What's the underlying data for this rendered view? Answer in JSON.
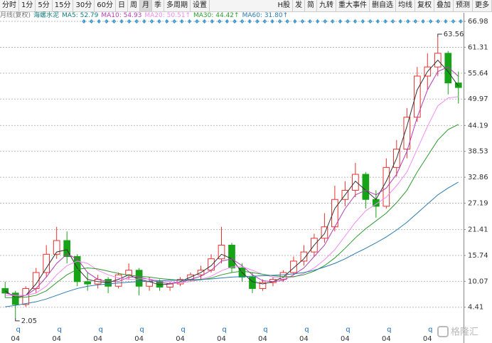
{
  "toolbar": {
    "left": [
      "分时",
      "1分",
      "5分",
      "15分",
      "30分",
      "60分",
      "日",
      "周",
      "月",
      "季",
      "多周期",
      "设置"
    ],
    "selected": "月",
    "right": [
      "H股",
      "发",
      "简",
      "九转",
      "重大事件",
      "删自选",
      "均线",
      "复权",
      "叠加",
      "预测",
      "更多"
    ]
  },
  "chart_data": {
    "type": "candlestick",
    "period_label": "月线(复权)",
    "stock_name": "海螺水泥",
    "watermark": "格隆汇",
    "categories": [
      null,
      "04",
      null,
      null,
      null,
      "04",
      null,
      null,
      null,
      "04",
      null,
      null,
      null,
      "04",
      null,
      null,
      null,
      "04",
      null,
      null,
      null,
      "04",
      null,
      null,
      null,
      "04",
      null,
      null,
      null,
      "04",
      null,
      null,
      null,
      "04",
      null,
      null,
      null,
      "04",
      null,
      null,
      null,
      "04",
      null,
      null,
      null
    ],
    "event_markers": [
      "q",
      "q",
      "q",
      "q",
      "q",
      "q",
      "q",
      "q",
      "q",
      "q",
      "q"
    ],
    "open": [
      8.5,
      7.5,
      5,
      8.5,
      12,
      16,
      19,
      15.5,
      10,
      9.5,
      10.5,
      9,
      11.5,
      12.5,
      9,
      10,
      8.8,
      9.5,
      10.5,
      11.5,
      12.5,
      15,
      18,
      13,
      11,
      8.5,
      9.8,
      10.5,
      12,
      14.5,
      16.5,
      19.5,
      22,
      28,
      30,
      33.5,
      28,
      26.5,
      35,
      39,
      46,
      55,
      57,
      60,
      53.5
    ],
    "high": [
      10,
      8,
      9,
      13,
      18,
      22,
      21,
      16,
      12,
      11.5,
      11,
      12,
      14,
      13,
      11,
      10.5,
      10,
      11,
      12,
      13.5,
      16,
      22,
      18.5,
      14,
      12,
      10.5,
      11,
      12.5,
      15.5,
      18,
      20.5,
      25,
      31,
      32,
      36,
      34,
      30,
      37,
      41,
      48,
      57,
      60,
      63.56,
      60.5,
      56
    ],
    "low": [
      6.5,
      2.05,
      4.5,
      7.5,
      11,
      15,
      14,
      9,
      8,
      8.5,
      7.5,
      8.5,
      10.5,
      7,
      8,
      8,
      8,
      9,
      10,
      10.5,
      12,
      14,
      12,
      10,
      7.5,
      8,
      9,
      10,
      11.5,
      13.5,
      15.5,
      18.5,
      21,
      26.5,
      28.5,
      26,
      24,
      26,
      33,
      37,
      45,
      52,
      55,
      51,
      49
    ],
    "close": [
      7.5,
      5,
      8.5,
      12,
      16,
      19,
      15.5,
      10,
      9.5,
      10.5,
      9,
      11.5,
      12.5,
      9,
      10,
      8.8,
      9.5,
      10.5,
      11.5,
      12.5,
      15,
      18,
      13,
      11,
      8.5,
      9.8,
      10.5,
      12,
      14.5,
      16.5,
      19.5,
      22,
      28,
      30,
      33.5,
      28,
      26.5,
      35,
      39,
      46,
      55,
      57,
      60,
      53.5,
      52.5
    ],
    "up_color": "#e8312f",
    "down_color": "#17a317",
    "series": [
      {
        "name": "MA5",
        "legend": "MA5: 52.79",
        "color": "#333333",
        "legend_color": "#137c7c",
        "values": [
          8,
          6.5,
          7,
          9.5,
          13,
          16.5,
          17,
          13,
          10.5,
          10,
          9.8,
          10.5,
          11.5,
          10.5,
          10,
          9.3,
          9.5,
          10,
          11,
          12,
          13.5,
          16,
          15,
          12,
          10,
          9.5,
          10,
          11,
          13,
          15,
          18,
          20.5,
          26,
          29,
          32,
          30,
          28,
          32,
          37,
          44,
          52,
          56,
          58.5,
          56,
          52.79
        ]
      },
      {
        "name": "MA10",
        "legend": "MA10: 54.93",
        "color": "#b23cb2",
        "legend_color": "#b23cb2",
        "values": [
          7.5,
          7,
          7,
          8.5,
          11,
          14,
          16,
          15,
          12,
          10.5,
          10,
          10,
          11,
          11,
          10.5,
          9.8,
          9.6,
          9.8,
          10.5,
          11.2,
          12.5,
          14.5,
          15,
          13.5,
          11.5,
          10.2,
          10,
          10.3,
          11.5,
          13,
          15.5,
          18,
          22,
          26,
          29,
          30,
          29,
          30.5,
          33.5,
          38.5,
          46,
          52,
          56,
          57,
          54.93
        ]
      },
      {
        "name": "MA20",
        "legend": "MA20: 50.51↑",
        "color": "#f08cf0",
        "legend_color": "#f08cf0",
        "values": [
          7,
          7,
          7,
          7.5,
          9,
          11.5,
          13.5,
          14.5,
          14,
          12.5,
          11.5,
          10.8,
          10.5,
          10.6,
          10.6,
          10.2,
          10,
          9.8,
          10,
          10.5,
          11.2,
          12.4,
          13.2,
          13.3,
          12.5,
          11.6,
          11,
          10.8,
          11,
          11.8,
          13,
          14.8,
          17,
          20,
          23,
          25.5,
          27,
          28.5,
          31,
          34,
          39,
          44,
          48.5,
          50.2,
          50.51
        ]
      },
      {
        "name": "MA30",
        "legend": "MA30: 44.42↑",
        "color": "#2e9a2e",
        "legend_color": "#2e9a2e",
        "values": [
          6.5,
          6.5,
          6.6,
          7,
          8,
          9.8,
          11.5,
          12.7,
          13,
          12.8,
          12.3,
          11.8,
          11.4,
          11.2,
          11,
          10.7,
          10.5,
          10.3,
          10.3,
          10.4,
          10.8,
          11.5,
          12,
          12.3,
          12,
          11.6,
          11.3,
          11.1,
          11.1,
          11.5,
          12.3,
          13.5,
          15.2,
          17.3,
          19.6,
          21.6,
          23.3,
          25,
          27.3,
          30,
          34,
          37.5,
          41,
          43.3,
          44.42
        ]
      },
      {
        "name": "MA60",
        "legend": "MA60: 31.80↑",
        "color": "#2a7ab0",
        "legend_color": "#2a7ab0",
        "values": [
          4.5,
          4.8,
          5.2,
          5.6,
          6.2,
          7,
          7.8,
          8.5,
          9,
          9.3,
          9.5,
          9.7,
          9.9,
          10,
          10.1,
          10.2,
          10.3,
          10.3,
          10.4,
          10.5,
          10.6,
          10.8,
          11,
          11.1,
          11.2,
          11.3,
          11.4,
          11.5,
          11.7,
          12,
          12.5,
          13.2,
          14,
          15,
          16.2,
          17.3,
          18.5,
          19.8,
          21.3,
          23,
          25,
          27,
          29,
          30.5,
          31.8
        ]
      }
    ],
    "ylim": [
      0,
      67.3
    ],
    "yticks": [
      4.41,
      10.07,
      15.74,
      21.41,
      27.19,
      32.86,
      38.53,
      44.19,
      49.97,
      55.64,
      61.31,
      66.98
    ],
    "grid": true
  }
}
